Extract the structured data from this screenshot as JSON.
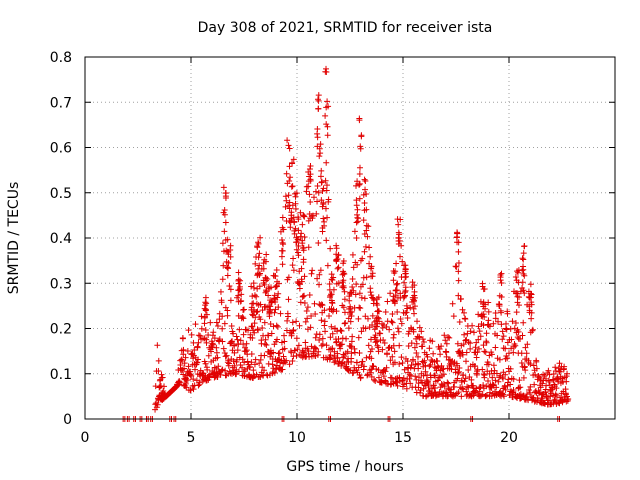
{
  "chart_data": {
    "type": "scatter",
    "title": "Day 308 of 2021, SRMTID for receiver ista",
    "xlabel": "GPS time / hours",
    "ylabel": "SRMTID / TECUs",
    "xlim": [
      0,
      25
    ],
    "ylim": [
      0,
      0.8
    ],
    "x_ticks": [
      "0",
      "5",
      "10",
      "15",
      "20"
    ],
    "x_tick_values": [
      0,
      5,
      10,
      15,
      20
    ],
    "y_ticks": [
      "0",
      "0.1",
      "0.2",
      "0.3",
      "0.4",
      "0.5",
      "0.6",
      "0.7",
      "0.8"
    ],
    "y_tick_values": [
      0,
      0.1,
      0.2,
      0.3,
      0.4,
      0.5,
      0.6,
      0.7,
      0.8
    ],
    "grid": true,
    "marker": "+",
    "color": "#e00000",
    "series": [
      {
        "name": "ista",
        "envelope": [
          [
            1.8,
            0.0
          ],
          [
            2.5,
            0.0
          ],
          [
            3.0,
            0.0
          ],
          [
            3.3,
            0.04
          ],
          [
            3.4,
            0.18
          ],
          [
            3.6,
            0.11
          ],
          [
            4.0,
            0.0
          ],
          [
            4.2,
            0.0
          ],
          [
            4.5,
            0.17
          ],
          [
            4.9,
            0.22
          ],
          [
            5.0,
            0.2
          ],
          [
            5.4,
            0.23
          ],
          [
            5.7,
            0.27
          ],
          [
            6.0,
            0.2
          ],
          [
            6.3,
            0.24
          ],
          [
            6.6,
            0.52
          ],
          [
            6.8,
            0.42
          ],
          [
            7.0,
            0.25
          ],
          [
            7.3,
            0.33
          ],
          [
            7.6,
            0.22
          ],
          [
            7.9,
            0.3
          ],
          [
            8.2,
            0.42
          ],
          [
            8.5,
            0.37
          ],
          [
            8.7,
            0.3
          ],
          [
            9.0,
            0.33
          ],
          [
            9.3,
            0.44
          ],
          [
            9.6,
            0.62
          ],
          [
            9.8,
            0.58
          ],
          [
            10.0,
            0.5
          ],
          [
            10.3,
            0.45
          ],
          [
            10.6,
            0.58
          ],
          [
            11.0,
            0.72
          ],
          [
            11.2,
            0.55
          ],
          [
            11.4,
            0.78
          ],
          [
            11.6,
            0.32
          ],
          [
            11.9,
            0.39
          ],
          [
            12.2,
            0.35
          ],
          [
            12.5,
            0.28
          ],
          [
            12.8,
            0.53
          ],
          [
            13.0,
            0.67
          ],
          [
            13.2,
            0.53
          ],
          [
            13.5,
            0.35
          ],
          [
            13.8,
            0.27
          ],
          [
            14.2,
            0.25
          ],
          [
            14.6,
            0.33
          ],
          [
            14.8,
            0.45
          ],
          [
            15.1,
            0.35
          ],
          [
            15.5,
            0.3
          ],
          [
            15.8,
            0.22
          ],
          [
            16.1,
            0.17
          ],
          [
            16.5,
            0.18
          ],
          [
            16.8,
            0.18
          ],
          [
            17.2,
            0.2
          ],
          [
            17.6,
            0.42
          ],
          [
            18.0,
            0.22
          ],
          [
            18.4,
            0.2
          ],
          [
            18.8,
            0.3
          ],
          [
            19.2,
            0.25
          ],
          [
            19.6,
            0.33
          ],
          [
            20.0,
            0.22
          ],
          [
            20.4,
            0.33
          ],
          [
            20.7,
            0.4
          ],
          [
            21.0,
            0.3
          ],
          [
            21.3,
            0.16
          ],
          [
            21.6,
            0.12
          ],
          [
            22.0,
            0.1
          ],
          [
            22.4,
            0.14
          ],
          [
            22.8,
            0.14
          ]
        ],
        "baseline": [
          [
            3.3,
            0.02
          ],
          [
            3.6,
            0.04
          ],
          [
            4.5,
            0.08
          ],
          [
            5.0,
            0.06
          ],
          [
            5.5,
            0.08
          ],
          [
            6.0,
            0.09
          ],
          [
            7.0,
            0.1
          ],
          [
            8.0,
            0.09
          ],
          [
            9.0,
            0.1
          ],
          [
            10.0,
            0.13
          ],
          [
            11.0,
            0.14
          ],
          [
            12.0,
            0.12
          ],
          [
            13.0,
            0.09
          ],
          [
            14.0,
            0.08
          ],
          [
            15.0,
            0.07
          ],
          [
            16.0,
            0.05
          ],
          [
            17.0,
            0.05
          ],
          [
            18.0,
            0.05
          ],
          [
            19.0,
            0.05
          ],
          [
            20.0,
            0.05
          ],
          [
            21.0,
            0.04
          ],
          [
            22.0,
            0.03
          ],
          [
            22.8,
            0.04
          ]
        ],
        "zero_points_x": [
          1.8,
          2.0,
          2.3,
          2.6,
          2.9,
          3.1,
          4.0,
          4.2,
          9.3,
          11.5,
          14.3,
          18.2,
          22.3
        ]
      }
    ]
  }
}
